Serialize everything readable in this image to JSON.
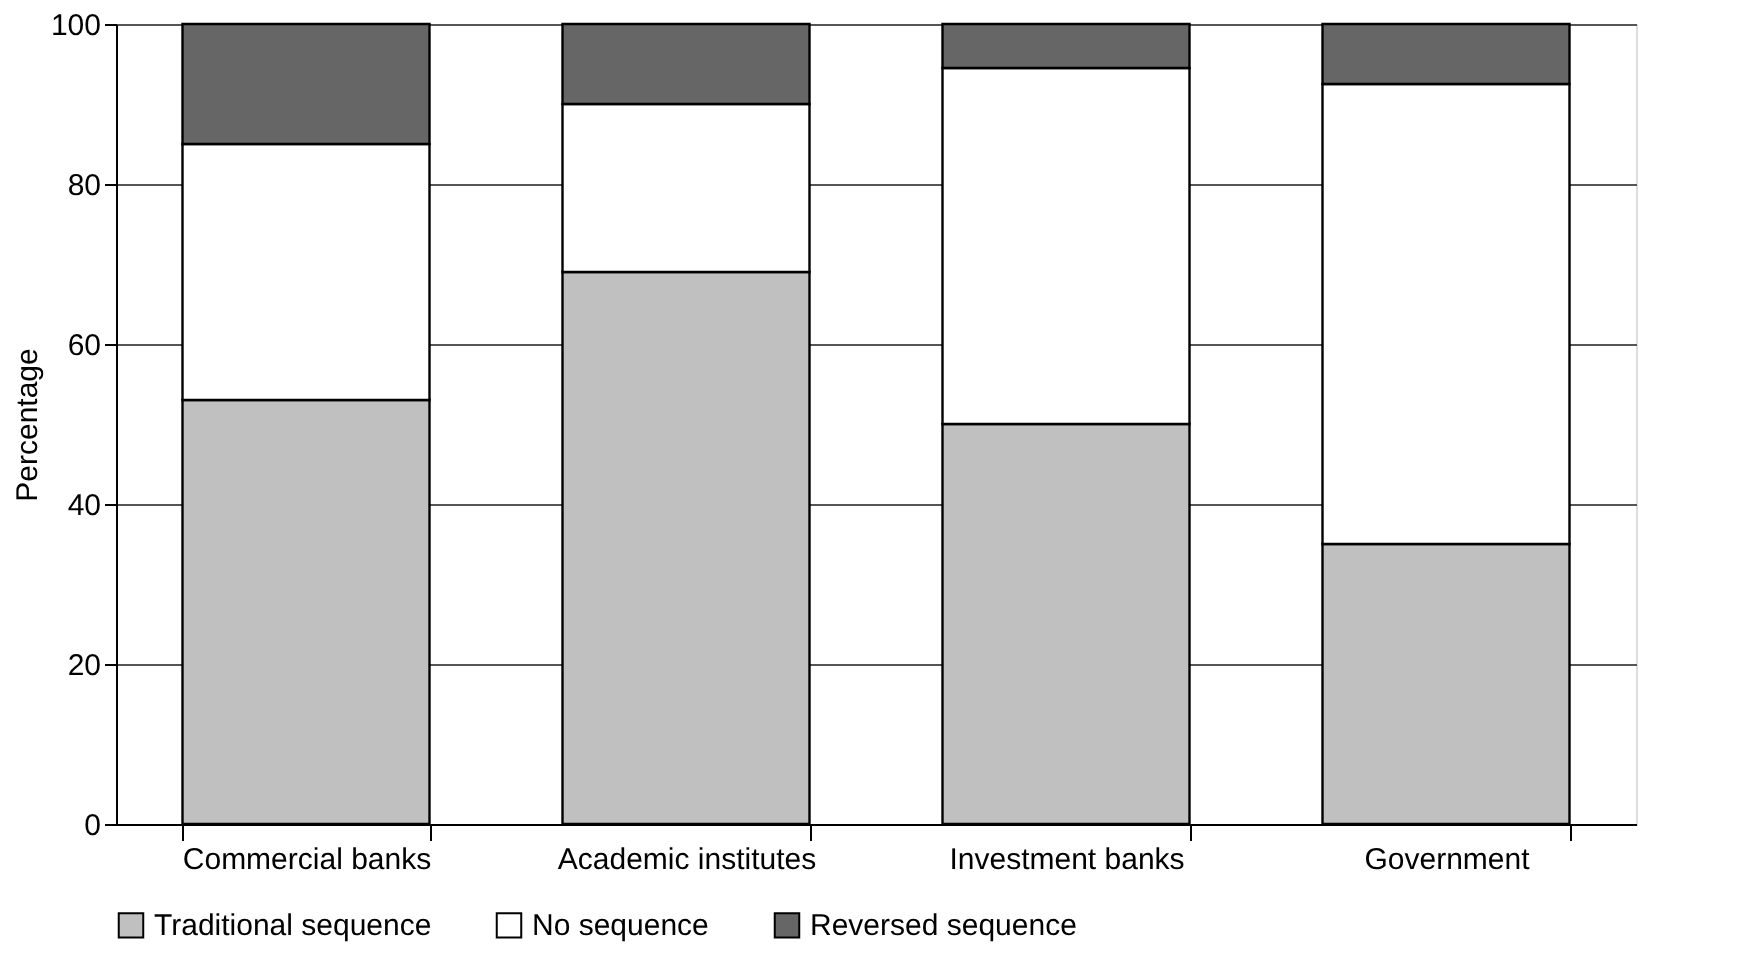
{
  "chart_data": {
    "type": "bar",
    "stacked": true,
    "ylabel": "Percentage",
    "categories": [
      "Commercial banks",
      "Academic institutes",
      "Investment banks",
      "Government"
    ],
    "series": [
      {
        "name": "Traditional sequence",
        "color": "#c0c0c0",
        "values": [
          53,
          69,
          50,
          35
        ]
      },
      {
        "name": "No sequence",
        "color": "#ffffff",
        "values": [
          32,
          21,
          44.5,
          57.5
        ]
      },
      {
        "name": "Reversed sequence",
        "color": "#666666",
        "values": [
          15,
          10,
          5.5,
          7.5
        ]
      }
    ],
    "ylim": [
      0,
      100
    ],
    "yticks": [
      0,
      20,
      40,
      60,
      80,
      100
    ],
    "grid": "y",
    "legend": "bottom"
  }
}
